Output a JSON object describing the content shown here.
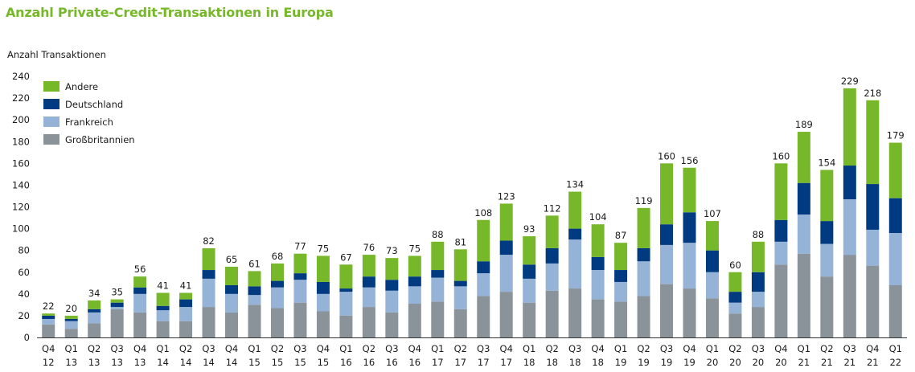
{
  "title": "Anzahl Private-Credit-Transaktionen in Europa",
  "chart_data": {
    "type": "bar",
    "stacked": true,
    "title": "Anzahl Private-Credit-Transaktionen in Europa",
    "ylabel": "Anzahl Transaktionen",
    "xlabel": "",
    "ylim": [
      0,
      240
    ],
    "yticks": [
      0,
      20,
      40,
      60,
      80,
      100,
      120,
      140,
      160,
      180,
      200,
      220,
      240
    ],
    "grid": false,
    "legend_position": "top-left",
    "categories": [
      [
        "Q4",
        "12"
      ],
      [
        "Q1",
        "13"
      ],
      [
        "Q2",
        "13"
      ],
      [
        "Q3",
        "13"
      ],
      [
        "Q4",
        "13"
      ],
      [
        "Q1",
        "14"
      ],
      [
        "Q2",
        "14"
      ],
      [
        "Q3",
        "14"
      ],
      [
        "Q4",
        "14"
      ],
      [
        "Q1",
        "15"
      ],
      [
        "Q2",
        "15"
      ],
      [
        "Q3",
        "15"
      ],
      [
        "Q4",
        "15"
      ],
      [
        "Q1",
        "16"
      ],
      [
        "Q2",
        "16"
      ],
      [
        "Q3",
        "16"
      ],
      [
        "Q4",
        "16"
      ],
      [
        "Q1",
        "17"
      ],
      [
        "Q2",
        "17"
      ],
      [
        "Q3",
        "17"
      ],
      [
        "Q4",
        "17"
      ],
      [
        "Q1",
        "18"
      ],
      [
        "Q2",
        "18"
      ],
      [
        "Q3",
        "18"
      ],
      [
        "Q4",
        "18"
      ],
      [
        "Q1",
        "19"
      ],
      [
        "Q2",
        "19"
      ],
      [
        "Q3",
        "19"
      ],
      [
        "Q4",
        "19"
      ],
      [
        "Q1",
        "20"
      ],
      [
        "Q2",
        "20"
      ],
      [
        "Q3",
        "20"
      ],
      [
        "Q4",
        "20"
      ],
      [
        "Q1",
        "21"
      ],
      [
        "Q2",
        "21"
      ],
      [
        "Q3",
        "21"
      ],
      [
        "Q4",
        "21"
      ],
      [
        "Q1",
        "22"
      ]
    ],
    "totals": [
      22,
      20,
      34,
      35,
      56,
      41,
      41,
      82,
      65,
      61,
      68,
      77,
      75,
      67,
      76,
      73,
      75,
      88,
      81,
      108,
      123,
      93,
      112,
      134,
      104,
      87,
      119,
      160,
      156,
      107,
      60,
      88,
      160,
      189,
      154,
      229,
      218,
      179
    ],
    "series": [
      {
        "name": "Großbritannien",
        "color": "#8a929a",
        "values": [
          12,
          8,
          13,
          26,
          23,
          15,
          15,
          28,
          23,
          30,
          27,
          32,
          24,
          20,
          28,
          23,
          31,
          33,
          26,
          38,
          42,
          32,
          43,
          45,
          35,
          33,
          38,
          49,
          45,
          36,
          22,
          28,
          67,
          77,
          56,
          76,
          66,
          48
        ]
      },
      {
        "name": "Frankreich",
        "color": "#95b3d7",
        "values": [
          5,
          7,
          10,
          2,
          17,
          10,
          13,
          26,
          17,
          9,
          19,
          21,
          16,
          22,
          18,
          20,
          16,
          22,
          21,
          21,
          34,
          22,
          25,
          45,
          27,
          18,
          32,
          36,
          42,
          24,
          10,
          14,
          21,
          36,
          30,
          51,
          33,
          48
        ]
      },
      {
        "name": "Deutschland",
        "color": "#003a80",
        "values": [
          3,
          2,
          3,
          4,
          6,
          4,
          7,
          8,
          8,
          8,
          6,
          6,
          11,
          3,
          10,
          10,
          9,
          7,
          5,
          11,
          13,
          13,
          14,
          10,
          12,
          11,
          12,
          19,
          28,
          20,
          10,
          18,
          20,
          29,
          21,
          31,
          42,
          32
        ]
      },
      {
        "name": "Andere",
        "color": "#76b82a",
        "values": [
          2,
          3,
          8,
          3,
          10,
          12,
          6,
          20,
          17,
          14,
          16,
          18,
          24,
          22,
          20,
          20,
          19,
          26,
          29,
          38,
          34,
          26,
          30,
          34,
          30,
          25,
          37,
          56,
          41,
          27,
          18,
          28,
          52,
          47,
          47,
          71,
          77,
          51
        ]
      }
    ]
  },
  "legend": [
    {
      "name": "Andere",
      "color": "#76b82a"
    },
    {
      "name": "Deutschland",
      "color": "#003a80"
    },
    {
      "name": "Frankreich",
      "color": "#95b3d7"
    },
    {
      "name": "Großbritannien",
      "color": "#8a929a"
    }
  ]
}
